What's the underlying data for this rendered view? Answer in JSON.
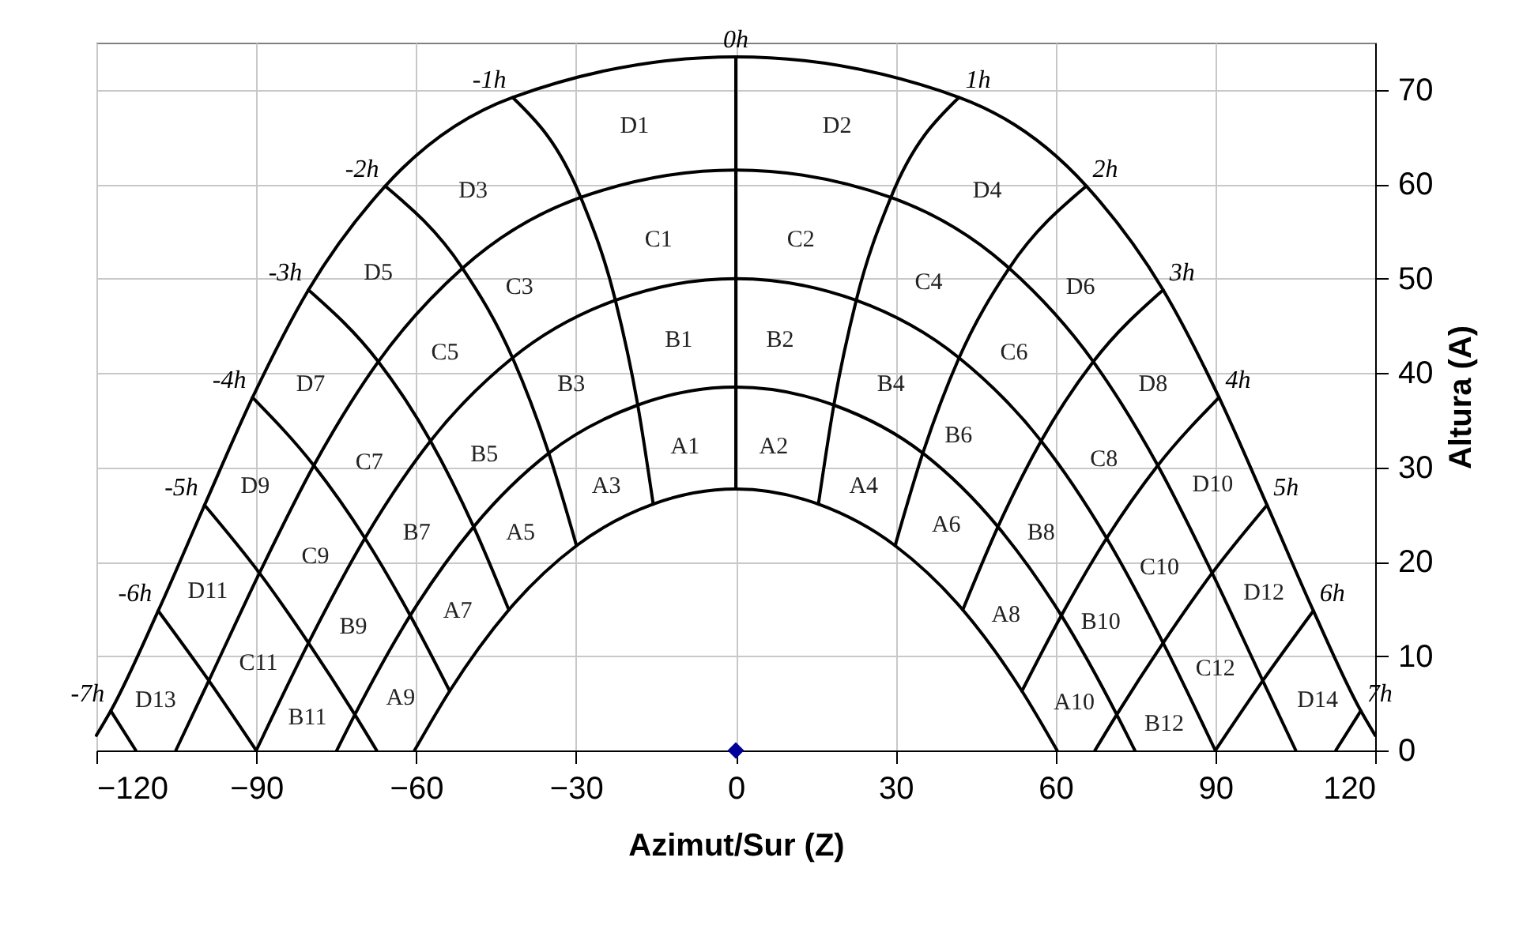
{
  "chart_data": {
    "type": "line",
    "xlabel": "Azimut/Sur (Z)",
    "ylabel": "Altura (A)",
    "xlim": [
      -120,
      120
    ],
    "xticks": [
      -120,
      -90,
      -60,
      -30,
      0,
      30,
      60,
      90,
      120
    ],
    "ylim": [
      0,
      75
    ],
    "yticks": [
      0,
      10,
      20,
      30,
      40,
      50,
      60,
      70
    ],
    "grid": true,
    "line_style": "solid",
    "series": [
      {
        "color": "#000000",
        "x": [
          -120,
          -117.3,
          -108.4,
          -99.7,
          -90.7,
          -80.2,
          -65.8,
          -41.9,
          0,
          41.9,
          65.8,
          80.2,
          90.7,
          99.7,
          108.4,
          117.3,
          120
        ],
        "values": [
          1.6,
          4.2,
          14.8,
          26,
          37.4,
          48.8,
          59.8,
          69.2,
          73.5,
          69.2,
          59.8,
          48.8,
          37.4,
          26,
          14.8,
          4.2,
          1.6
        ]
      },
      {
        "color": "#000000",
        "x": [
          -105.1,
          -98.9,
          -89.4,
          -79.2,
          -67.1,
          -51.3,
          -29.1,
          0,
          29.1,
          51.3,
          67.1,
          79.2,
          89.4,
          98.9,
          105.1
        ],
        "values": [
          0,
          7.4,
          18.8,
          30.2,
          41.2,
          51.1,
          58.6,
          61.5,
          58.6,
          51.1,
          41.2,
          30.2,
          18.8,
          7.4,
          0
        ]
      },
      {
        "color": "#000000",
        "x": [
          -90,
          -80.2,
          -69.6,
          -57.3,
          -41.9,
          -22.6,
          0,
          22.6,
          41.9,
          57.3,
          69.6,
          80.2,
          90
        ],
        "values": [
          0,
          11.4,
          22.5,
          32.8,
          41.6,
          47.7,
          50,
          47.7,
          41.6,
          32.8,
          22.5,
          11.4,
          0
        ]
      },
      {
        "color": "#000000",
        "x": [
          -74.9,
          -71.5,
          -61.1,
          -49.2,
          -35.1,
          -18.4,
          0,
          18.4,
          35.1,
          49.2,
          61.1,
          71.5,
          74.9
        ],
        "values": [
          0,
          3.8,
          14.3,
          23.7,
          31.5,
          36.6,
          38.5,
          36.6,
          31.5,
          23.7,
          14.3,
          3.8,
          0
        ]
      },
      {
        "color": "#000000",
        "x": [
          -60.3,
          -53.7,
          -42.6,
          -29.9,
          -15.5,
          0,
          15.5,
          29.9,
          42.6,
          53.7,
          60.3
        ],
        "values": [
          0,
          6.3,
          14.9,
          21.7,
          26.1,
          27.7,
          26.1,
          21.7,
          14.9,
          6.3,
          0
        ]
      },
      {
        "name": "0h",
        "color": "#000000",
        "x": [
          0,
          0
        ],
        "values": [
          73.5,
          27.7
        ]
      },
      {
        "name": "-1h",
        "color": "#000000",
        "x": [
          -41.9,
          -29.1,
          -22.6,
          -18.4,
          -15.5
        ],
        "values": [
          69.2,
          58.6,
          47.7,
          36.6,
          26.1
        ]
      },
      {
        "name": "1h",
        "color": "#000000",
        "x": [
          41.9,
          29.1,
          22.6,
          18.4,
          15.5
        ],
        "values": [
          69.2,
          58.6,
          47.7,
          36.6,
          26.1
        ]
      },
      {
        "name": "-2h",
        "color": "#000000",
        "x": [
          -65.8,
          -51.3,
          -41.9,
          -35.1,
          -29.9
        ],
        "values": [
          59.8,
          51.1,
          41.6,
          31.5,
          21.7
        ]
      },
      {
        "name": "2h",
        "color": "#000000",
        "x": [
          65.8,
          51.3,
          41.9,
          35.1,
          29.9
        ],
        "values": [
          59.8,
          51.1,
          41.6,
          31.5,
          21.7
        ]
      },
      {
        "name": "-3h",
        "color": "#000000",
        "x": [
          -80.2,
          -67.1,
          -57.3,
          -49.2,
          -42.6
        ],
        "values": [
          48.8,
          41.2,
          32.8,
          23.7,
          14.9
        ]
      },
      {
        "name": "3h",
        "color": "#000000",
        "x": [
          80.2,
          67.1,
          57.3,
          49.2,
          42.6
        ],
        "values": [
          48.8,
          41.2,
          32.8,
          23.7,
          14.9
        ]
      },
      {
        "name": "-4h",
        "color": "#000000",
        "x": [
          -90.7,
          -79.2,
          -69.6,
          -61.1,
          -53.7
        ],
        "values": [
          37.4,
          30.2,
          22.5,
          14.3,
          6.3
        ]
      },
      {
        "name": "4h",
        "color": "#000000",
        "x": [
          90.7,
          79.2,
          69.6,
          61.1,
          53.7
        ],
        "values": [
          37.4,
          30.2,
          22.5,
          14.3,
          6.3
        ]
      },
      {
        "name": "-5h",
        "color": "#000000",
        "x": [
          -99.7,
          -89.4,
          -80.2,
          -71.5,
          -67.4
        ],
        "values": [
          26,
          18.8,
          11.4,
          3.8,
          0
        ]
      },
      {
        "name": "5h",
        "color": "#000000",
        "x": [
          99.7,
          89.4,
          80.2,
          71.5,
          67.4
        ],
        "values": [
          26,
          18.8,
          11.4,
          3.8,
          0
        ]
      },
      {
        "name": "-6h",
        "color": "#000000",
        "x": [
          -108.4,
          -98.9,
          -90
        ],
        "values": [
          14.8,
          7.4,
          0
        ]
      },
      {
        "name": "6h",
        "color": "#000000",
        "x": [
          108.4,
          98.9,
          90
        ],
        "values": [
          14.8,
          7.4,
          0
        ]
      },
      {
        "name": "-7h",
        "color": "#000000",
        "x": [
          -117.3,
          -112.6
        ],
        "values": [
          4.2,
          0
        ]
      },
      {
        "name": "7h",
        "color": "#000000",
        "x": [
          117.3,
          112.6
        ],
        "values": [
          4.2,
          0
        ]
      },
      {
        "type": "scatter",
        "marker": "diamond",
        "color": "#000099",
        "x": [
          0
        ],
        "values": [
          0
        ]
      }
    ],
    "annotations": [
      "D1",
      "D2",
      "D3",
      "D4",
      "D5",
      "D6",
      "C1",
      "C2",
      "C3",
      "C4",
      "C5",
      "C6",
      "B1",
      "B2",
      "B3",
      "B4",
      "D7",
      "D8",
      "A1",
      "A2",
      "B5",
      "B6",
      "C7",
      "C8",
      "D9",
      "D10",
      "A3",
      "A4",
      "A5",
      "A6",
      "B7",
      "B8",
      "C9",
      "C10",
      "D11",
      "D12",
      "A7",
      "A8",
      "B9",
      "B10",
      "C11",
      "C12",
      "D13",
      "D14",
      "A9",
      "A10",
      "B11",
      "B12"
    ]
  }
}
